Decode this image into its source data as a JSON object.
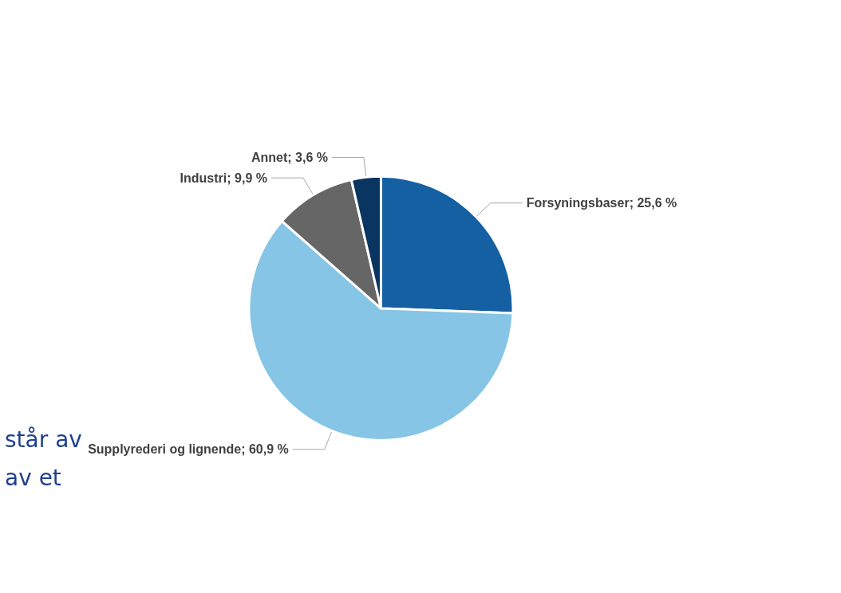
{
  "chart_data": {
    "type": "pie",
    "categories": [
      "Forsyningsbaser",
      "Supplyrederi og lignende",
      "Industri",
      "Annet"
    ],
    "values": [
      25.6,
      60.9,
      9.9,
      3.6
    ],
    "value_labels": [
      "25,6 %",
      "60,9 %",
      "9,9 %",
      "3,6 %"
    ],
    "colors": [
      "#1560a3",
      "#86c5e5",
      "#666666",
      "#0b3561"
    ],
    "annotations": [
      "står av",
      "av et"
    ],
    "legend": false
  }
}
